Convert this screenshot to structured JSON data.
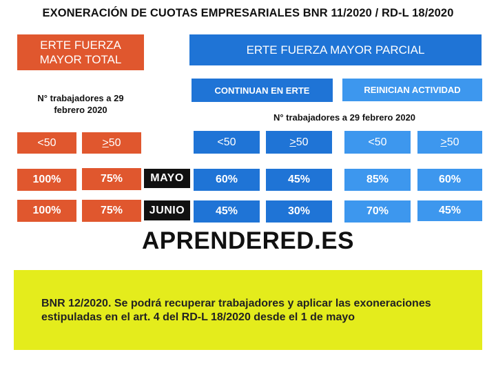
{
  "title": "EXONERACIÓN DE CUOTAS EMPRESARIALES BNR 11/2020 / RD-L 18/2020",
  "erte_total": {
    "header_line1": "ERTE FUERZA",
    "header_line2": "MAYOR TOTAL",
    "note_line1": "N° trabajadores a 29",
    "note_line2": "febrero 2020",
    "lt50": "<50",
    "ge50_sym": ">",
    "ge50_num": "50",
    "mayo": [
      "100%",
      "75%"
    ],
    "junio": [
      "100%",
      "75%"
    ]
  },
  "erte_parcial": {
    "header": "ERTE FUERZA MAYOR PARCIAL",
    "note": "N° trabajadores a 29 febrero 2020",
    "continuan": {
      "label": "CONTINUAN EN ERTE",
      "lt50": "<50",
      "ge50_sym": ">",
      "ge50_num": "50",
      "mayo": [
        "60%",
        "45%"
      ],
      "junio": [
        "45%",
        "30%"
      ]
    },
    "reinician": {
      "label": "REINICIAN ACTIVIDAD",
      "lt50": "<50",
      "ge50_sym": ">",
      "ge50_num": "50",
      "mayo": [
        "85%",
        "60%"
      ],
      "junio": [
        "70%",
        "45%"
      ]
    }
  },
  "months": {
    "mayo": "MAYO",
    "junio": "JUNIO"
  },
  "brand": "APRENDERED.ES",
  "footnote": {
    "line1": "BNR 12/2020. Se podrá recuperar trabajadores y aplicar las exoneraciones",
    "line2": "estipuladas en el art. 4 del RD-L 18/2020 desde el 1 de mayo"
  },
  "colors": {
    "orange": "#e0572e",
    "blue_dark": "#1f74d6",
    "blue_light": "#3d97ee",
    "yellow": "#e4ec1c"
  }
}
